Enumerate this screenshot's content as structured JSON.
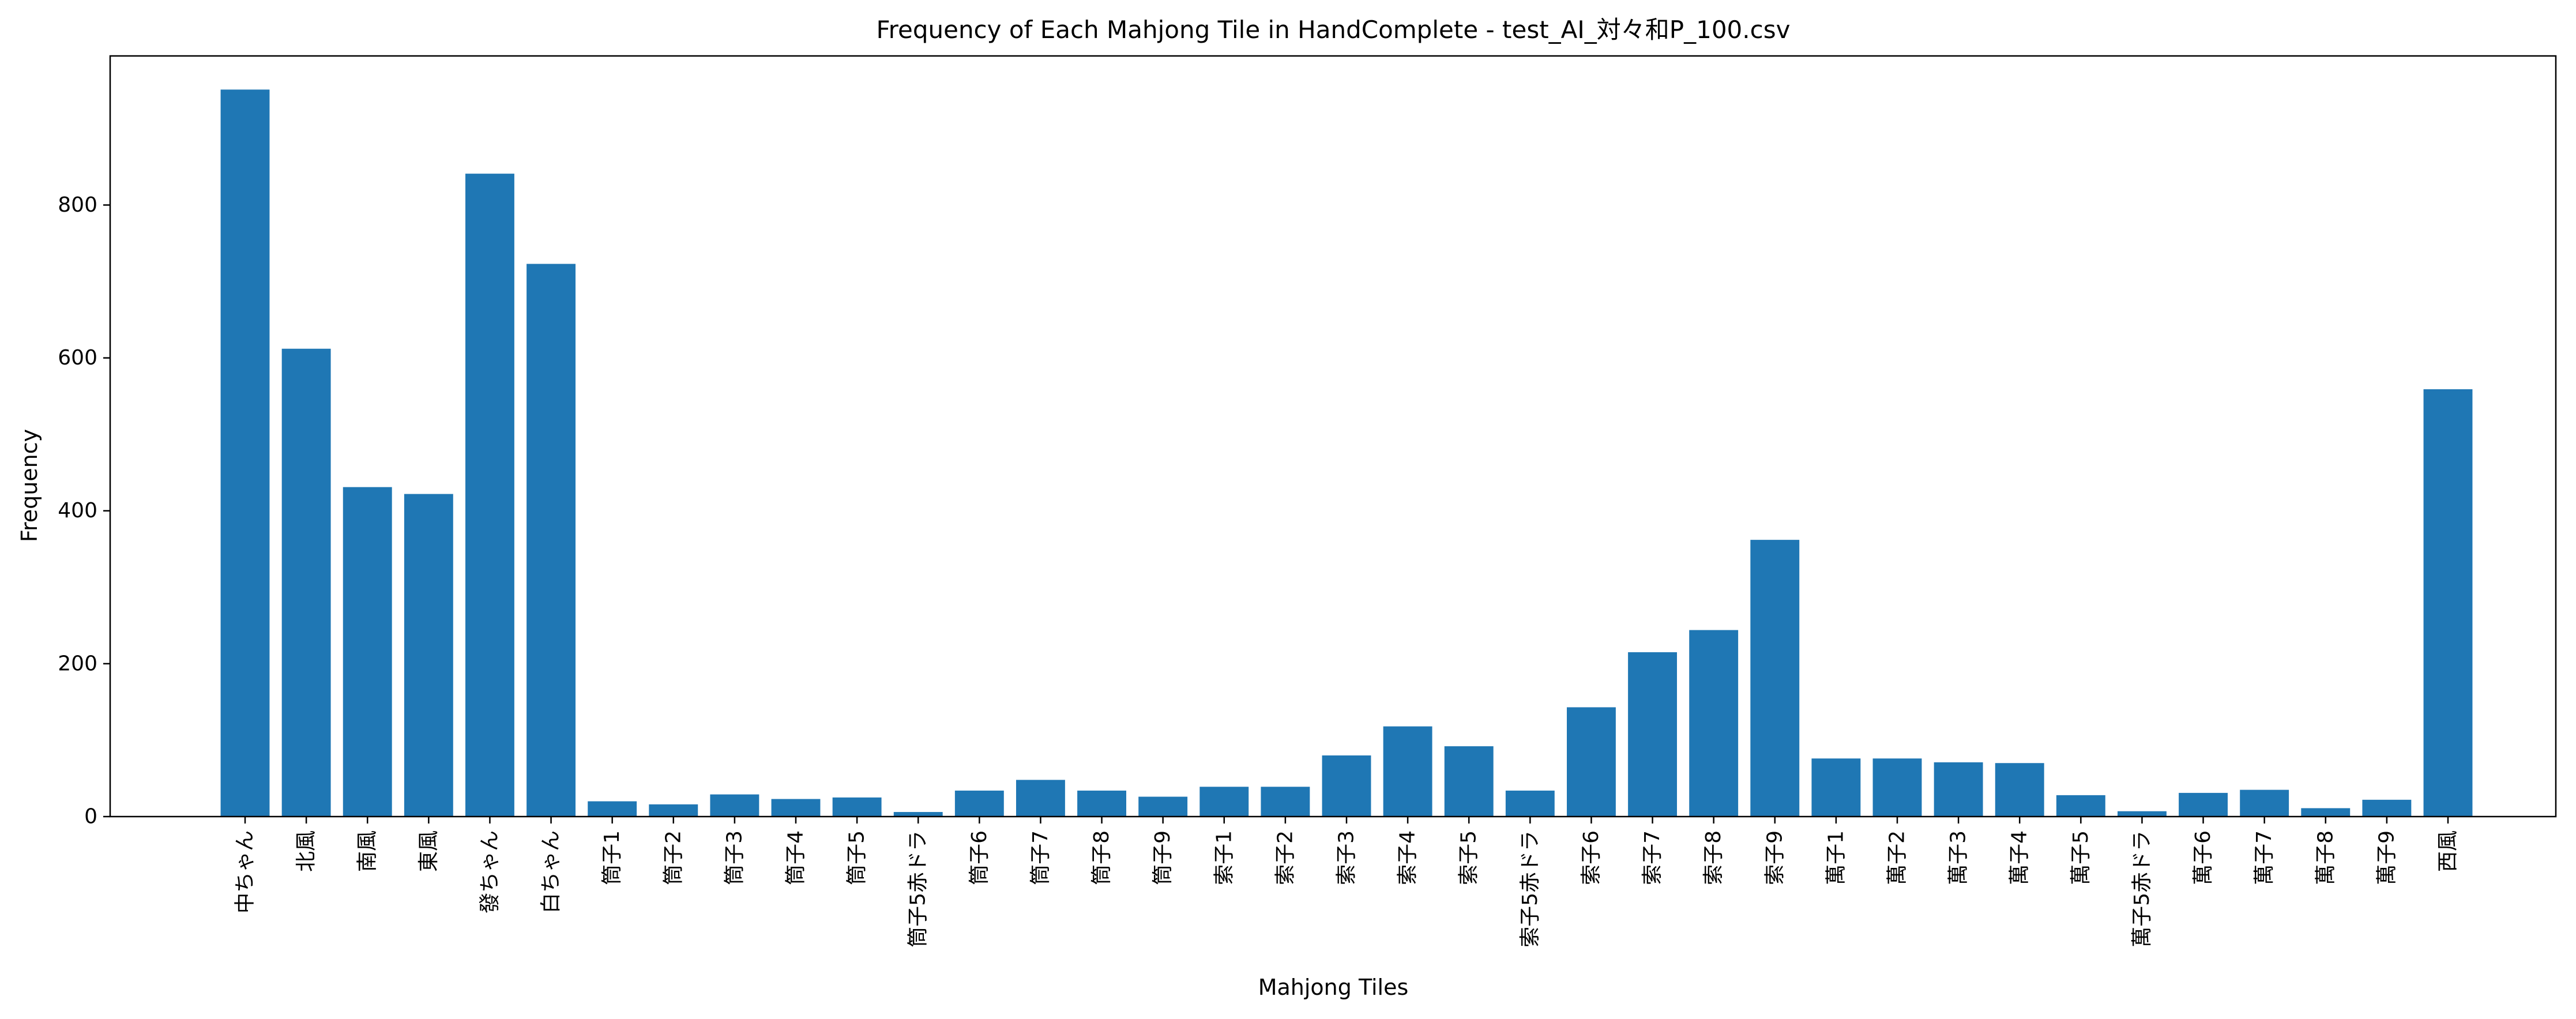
{
  "chart_data": {
    "type": "bar",
    "title": "Frequency of Each Mahjong Tile in HandComplete - test_AI_対々和P_100.csv",
    "xlabel": "Mahjong Tiles",
    "ylabel": "Frequency",
    "ylim": [
      0,
      995
    ],
    "yticks": [
      0,
      200,
      400,
      600,
      800
    ],
    "grid": false,
    "color": "#1f77b4",
    "categories": [
      "中ちゃん",
      "北風",
      "南風",
      "東風",
      "發ちゃん",
      "白ちゃん",
      "筒子1",
      "筒子2",
      "筒子3",
      "筒子4",
      "筒子5",
      "筒子5赤ドラ",
      "筒子6",
      "筒子7",
      "筒子8",
      "筒子9",
      "索子1",
      "索子2",
      "索子3",
      "索子4",
      "索子5",
      "索子5赤ドラ",
      "索子6",
      "索子7",
      "索子8",
      "索子9",
      "萬子1",
      "萬子2",
      "萬子3",
      "萬子4",
      "萬子5",
      "萬子5赤ドラ",
      "萬子6",
      "萬子7",
      "萬子8",
      "萬子9",
      "西風"
    ],
    "values": [
      951,
      612,
      431,
      422,
      841,
      723,
      20,
      16,
      29,
      23,
      25,
      6,
      34,
      48,
      34,
      26,
      39,
      39,
      80,
      118,
      92,
      34,
      143,
      215,
      244,
      362,
      76,
      76,
      71,
      70,
      28,
      7,
      31,
      35,
      11,
      22,
      559
    ]
  }
}
